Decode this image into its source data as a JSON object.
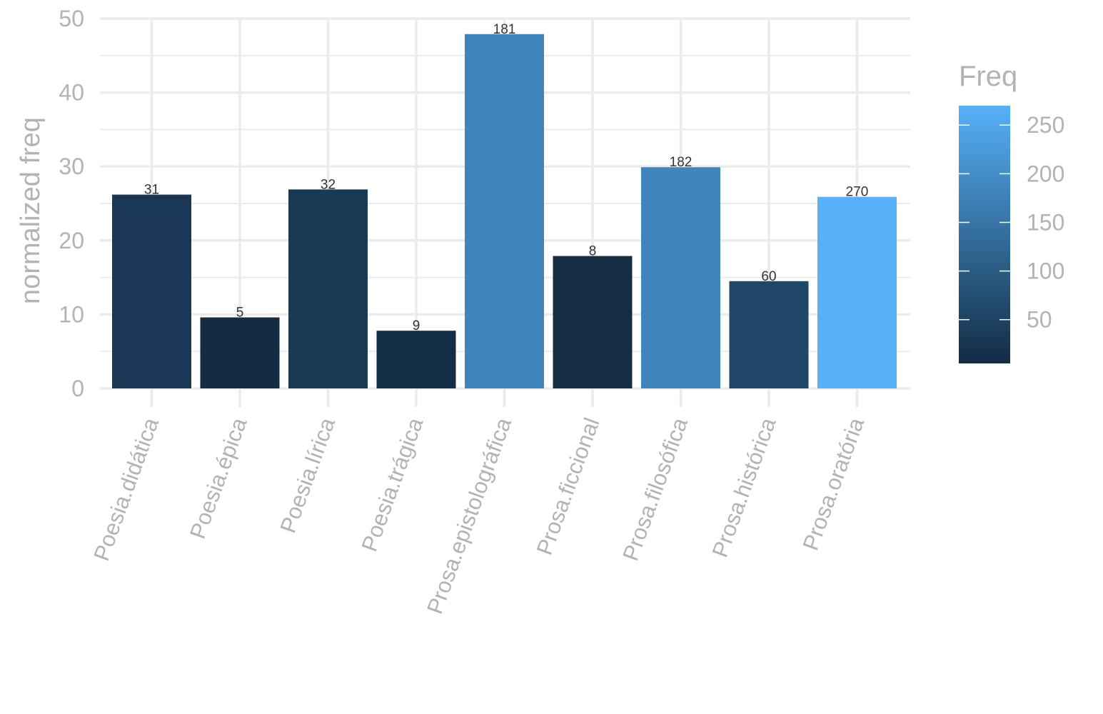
{
  "chart_data": {
    "type": "bar",
    "categories": [
      "Poesia.didática",
      "Poesia.épica",
      "Poesia.lírica",
      "Poesia.trágica",
      "Prosa.epistolográfica",
      "Prosa.ficcional",
      "Prosa.filosófica",
      "Prosa.histórica",
      "Prosa.oratória"
    ],
    "values": [
      26.2,
      9.6,
      26.9,
      7.8,
      47.9,
      17.9,
      29.9,
      14.5,
      25.9
    ],
    "bar_labels": [
      "31",
      "5",
      "32",
      "9",
      "181",
      "8",
      "182",
      "60",
      "270"
    ],
    "fill_values": [
      31,
      5,
      32,
      9,
      181,
      8,
      182,
      60,
      270
    ],
    "title": "",
    "xlabel": "",
    "ylabel": "normalized freq",
    "ylim": [
      0,
      50
    ],
    "yticks": [
      "0",
      "10",
      "20",
      "30",
      "40",
      "50"
    ],
    "grid": true,
    "legend": {
      "title": "Freq",
      "position": "right",
      "ticks": [
        "50",
        "100",
        "150",
        "200",
        "250"
      ],
      "tick_values": [
        50,
        100,
        150,
        200,
        250
      ],
      "range": [
        5,
        270
      ],
      "low_color": "#132B43",
      "high_color": "#56B1F7"
    }
  }
}
